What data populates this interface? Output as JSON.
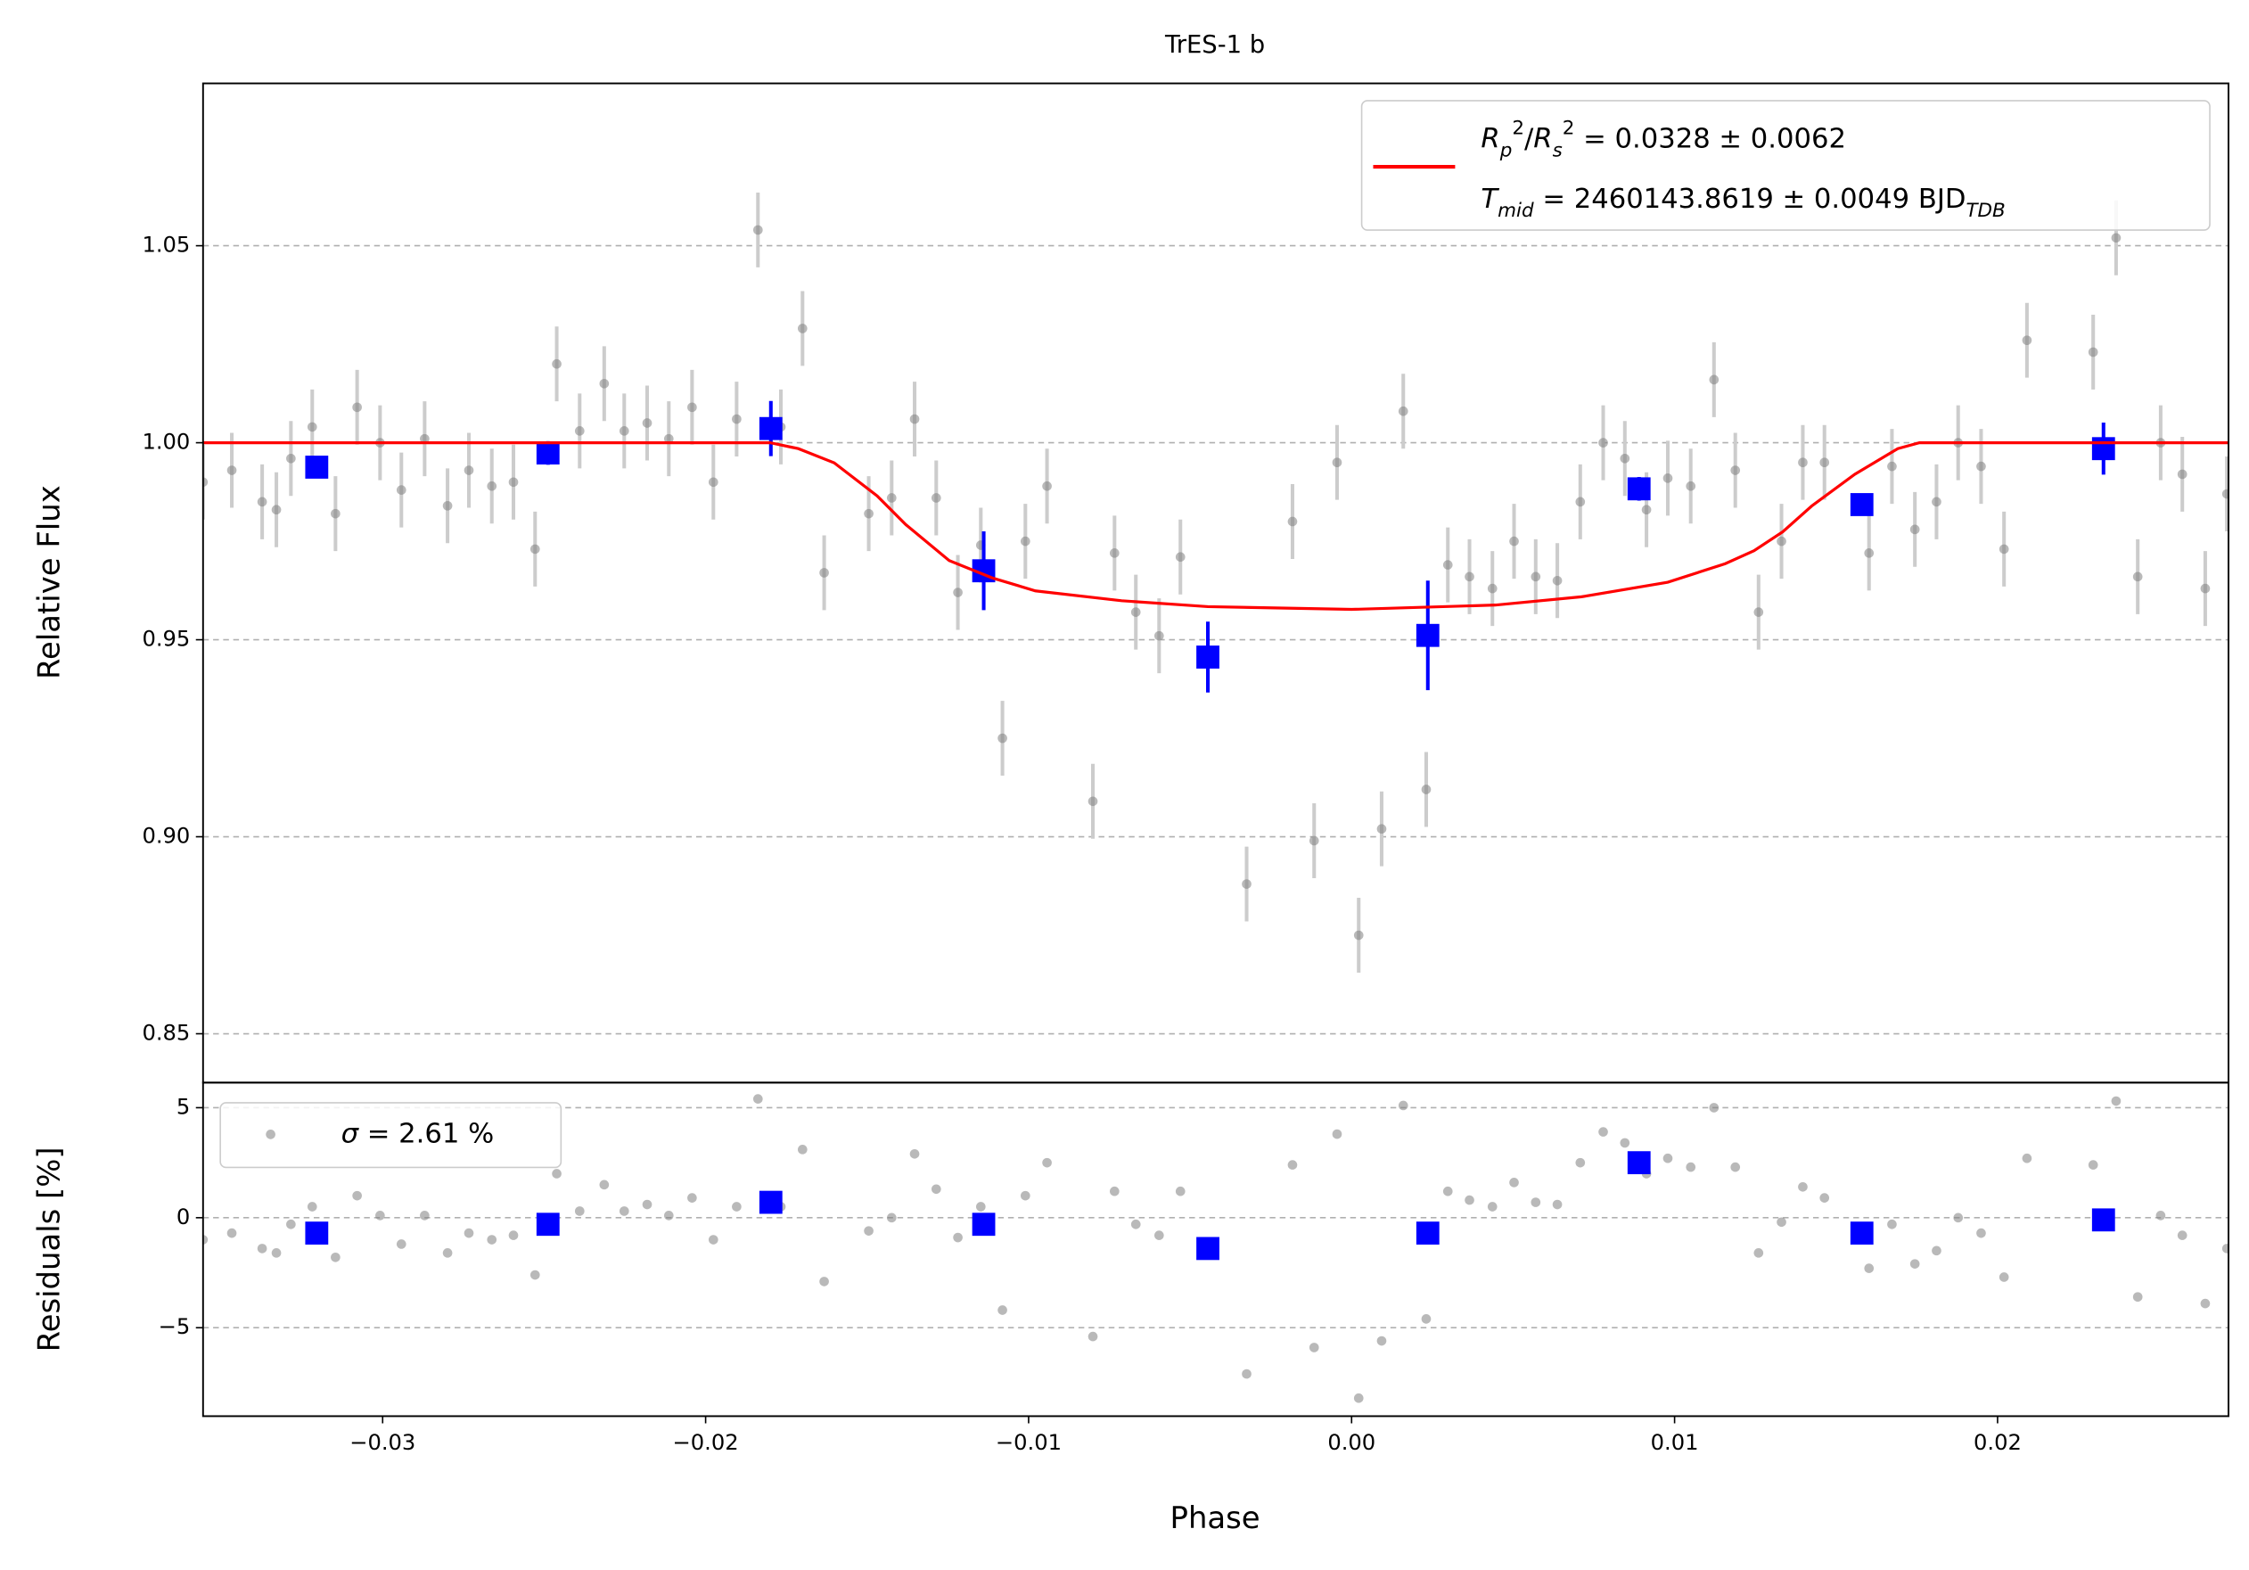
{
  "chart_data": [
    {
      "type": "scatter",
      "title": "TrES-1 b",
      "ylabel": "Relative Flux",
      "xlim": [
        -0.03556,
        0.02715
      ],
      "ylim": [
        0.8376,
        1.0912
      ],
      "yticks": [
        0.85,
        {
          "value": 0.9,
          "label": "0.90"
        },
        0.95,
        {
          "value": 1.0,
          "label": "1.00"
        },
        1.05
      ],
      "grid": true,
      "legend": {
        "loc": "upper right",
        "lines": [
          [
            {
              "t": "R",
              "s": "i"
            },
            {
              "t": "p",
              "s": "sub"
            },
            {
              "t": "2",
              "s": "sup"
            },
            {
              "t": "/",
              "s": "n"
            },
            {
              "t": "R",
              "s": "i"
            },
            {
              "t": "s",
              "s": "sub"
            },
            {
              "t": "2",
              "s": "sup"
            },
            {
              "t": " = 0.0328 ± 0.0062",
              "s": "n"
            }
          ],
          [
            {
              "t": "T",
              "s": "i"
            },
            {
              "t": "mid",
              "s": "sub"
            },
            {
              "t": " = 2460143.8619 ± 0.0049 BJD",
              "s": "n"
            },
            {
              "t": "TDB",
              "s": "sub"
            }
          ]
        ],
        "series": 2
      },
      "series": [
        {
          "marker": "circle",
          "color": "#808080",
          "errcolor": "#cccccc",
          "yerr": 0.0095,
          "x": [
            -0.03556,
            -0.03467,
            -0.03373,
            -0.03329,
            -0.03284,
            -0.03218,
            -0.03146,
            -0.03079,
            -0.03008,
            -0.02942,
            -0.0287,
            -0.02799,
            -0.02733,
            -0.02662,
            -0.02595,
            -0.02528,
            -0.02461,
            -0.0239,
            -0.02314,
            -0.02252,
            -0.02181,
            -0.02114,
            -0.02042,
            -0.01976,
            -0.01904,
            -0.01838,
            -0.01767,
            -0.017,
            -0.01633,
            -0.01495,
            -0.01424,
            -0.01353,
            -0.01286,
            -0.01219,
            -0.01148,
            -0.01081,
            -0.0101,
            -0.00943,
            -0.00801,
            -0.00734,
            -0.00668,
            -0.00596,
            -0.0053,
            -0.00325,
            -0.00183,
            -0.00116,
            -0.00045,
            0.00022,
            0.00093,
            0.0016,
            0.00231,
            0.00298,
            0.00365,
            0.00436,
            0.00503,
            0.0057,
            0.00637,
            0.00708,
            0.00779,
            0.00846,
            0.00913,
            0.00979,
            0.0105,
            0.01122,
            0.01188,
            0.0126,
            0.01331,
            0.01397,
            0.01464,
            0.01602,
            0.01673,
            0.01744,
            0.01811,
            0.01878,
            0.01949,
            0.0202,
            0.02091,
            0.02296,
            0.02367,
            0.02434,
            0.02505,
            0.02572,
            0.02643,
            0.0271
          ],
          "values": [
            0.99,
            0.993,
            0.985,
            0.983,
            0.996,
            1.004,
            0.982,
            1.009,
            1.0,
            0.988,
            1.001,
            0.984,
            0.993,
            0.989,
            0.99,
            0.973,
            1.02,
            1.003,
            1.015,
            1.003,
            1.005,
            1.001,
            1.009,
            0.99,
            1.006,
            1.054,
            1.004,
            1.029,
            0.967,
            0.982,
            0.986,
            1.006,
            0.986,
            0.962,
            0.974,
            0.925,
            0.975,
            0.989,
            0.909,
            0.972,
            0.957,
            0.951,
            0.971,
            0.888,
            0.98,
            0.899,
            0.995,
            0.875,
            0.902,
            1.008,
            0.912,
            0.969,
            0.966,
            0.963,
            0.975,
            0.966,
            0.965,
            0.985,
            1.0,
            0.996,
            0.983,
            0.991,
            0.989,
            1.016,
            0.993,
            0.957,
            0.975,
            0.995,
            0.995,
            0.972,
            0.994,
            0.978,
            0.985,
            1.0,
            0.994,
            0.973,
            1.026,
            1.023,
            1.052,
            0.966,
            1.0,
            0.992,
            0.963,
            0.987
          ]
        },
        {
          "marker": "square",
          "color": "#0000ff",
          "errcolor": "#0000ff",
          "x": [
            -0.03204,
            -0.02488,
            -0.01798,
            -0.01139,
            -0.00445,
            0.00236,
            0.0089,
            0.0158,
            0.02328
          ],
          "values": [
            0.9938,
            0.9974,
            1.0036,
            0.9675,
            0.9456,
            0.9511,
            0.9883,
            0.9843,
            0.9985
          ],
          "yerr": [
            0.0015,
            0.003,
            0.007,
            0.01,
            0.009,
            0.0139,
            0.003,
            0.002,
            0.0066
          ]
        },
        {
          "marker": "line",
          "color": "#ff0000",
          "x": [
            -0.03556,
            -0.018,
            -0.01713,
            -0.01602,
            -0.01469,
            -0.0138,
            -0.01246,
            -0.01113,
            -0.00979,
            -0.00712,
            -0.00445,
            0,
            0.00445,
            0.00712,
            0.00979,
            0.01157,
            0.01246,
            0.01335,
            0.01424,
            0.01558,
            0.01691,
            0.01758,
            0.02715
          ],
          "values": [
            1.0,
            1.0,
            0.9985,
            0.9949,
            0.9865,
            0.9792,
            0.9701,
            0.9657,
            0.9624,
            0.9599,
            0.9584,
            0.9577,
            0.9588,
            0.9609,
            0.9646,
            0.9693,
            0.9726,
            0.9774,
            0.9839,
            0.992,
            0.9985,
            1.0,
            1.0
          ]
        }
      ]
    },
    {
      "type": "scatter",
      "ylabel": "Residuals [%]",
      "xlabel": "Phase",
      "xlim": [
        -0.03556,
        0.02715
      ],
      "ylim": [
        -9.02,
        6.14
      ],
      "xticks": [
        {
          "value": -0.03,
          "label": "−0.03"
        },
        {
          "value": -0.02,
          "label": "−0.02"
        },
        {
          "value": -0.01,
          "label": "−0.01"
        },
        {
          "value": 0,
          "label": "0.00"
        },
        0.01,
        0.02
      ],
      "yticks": [
        {
          "value": -5,
          "label": "−5"
        },
        0,
        5
      ],
      "grid": true,
      "legend": {
        "loc": "upper left",
        "lines": [
          [
            {
              "t": "σ",
              "s": "i"
            },
            {
              "t": " = 2.61 %",
              "s": "n"
            }
          ]
        ],
        "series": 0
      },
      "series": [
        {
          "marker": "circle",
          "color": "#808080",
          "x": [
            -0.03556,
            -0.03467,
            -0.03373,
            -0.03329,
            -0.03284,
            -0.03218,
            -0.03146,
            -0.03079,
            -0.03008,
            -0.02942,
            -0.0287,
            -0.02799,
            -0.02733,
            -0.02662,
            -0.02595,
            -0.02528,
            -0.02461,
            -0.0239,
            -0.02314,
            -0.02252,
            -0.02181,
            -0.02114,
            -0.02042,
            -0.01976,
            -0.01904,
            -0.01838,
            -0.01767,
            -0.017,
            -0.01633,
            -0.01495,
            -0.01424,
            -0.01353,
            -0.01286,
            -0.01219,
            -0.01148,
            -0.01081,
            -0.0101,
            -0.00943,
            -0.00801,
            -0.00734,
            -0.00668,
            -0.00596,
            -0.0053,
            -0.00325,
            -0.00183,
            -0.00116,
            -0.00045,
            0.00022,
            0.00093,
            0.0016,
            0.00231,
            0.00298,
            0.00365,
            0.00436,
            0.00503,
            0.0057,
            0.00637,
            0.00708,
            0.00779,
            0.00846,
            0.00913,
            0.00979,
            0.0105,
            0.01122,
            0.01188,
            0.0126,
            0.01331,
            0.01397,
            0.01464,
            0.01602,
            0.01673,
            0.01744,
            0.01811,
            0.01878,
            0.01949,
            0.0202,
            0.02091,
            0.02296,
            0.02367,
            0.02434,
            0.02505,
            0.02572,
            0.02643,
            0.0271
          ],
          "values": [
            -1.0,
            -0.7,
            -1.4,
            -1.6,
            -0.3,
            0.5,
            -1.8,
            1.0,
            0.1,
            -1.2,
            0.1,
            -1.6,
            -0.7,
            -1.0,
            -0.8,
            -2.6,
            2.0,
            0.3,
            1.5,
            0.3,
            0.6,
            0.1,
            0.9,
            -1.0,
            0.5,
            5.4,
            0.5,
            3.1,
            -2.9,
            -0.6,
            0.0,
            2.9,
            1.3,
            -0.9,
            0.5,
            -4.2,
            1.0,
            2.5,
            -5.4,
            1.2,
            -0.3,
            -0.8,
            1.2,
            -7.1,
            2.4,
            -5.9,
            3.8,
            -8.2,
            -5.6,
            5.1,
            -4.6,
            1.2,
            0.8,
            0.5,
            1.6,
            0.7,
            0.6,
            2.5,
            3.9,
            3.4,
            2.0,
            2.7,
            2.3,
            5.0,
            2.3,
            -1.6,
            -0.2,
            1.4,
            0.9,
            -2.3,
            -0.3,
            -2.1,
            -1.5,
            0.0,
            -0.7,
            -2.7,
            2.7,
            2.4,
            5.3,
            -3.6,
            0.1,
            -0.8,
            -3.9,
            -1.4
          ]
        },
        {
          "marker": "square",
          "color": "#0000ff",
          "x": [
            -0.03204,
            -0.02488,
            -0.01798,
            -0.01139,
            -0.00445,
            0.00236,
            0.0089,
            0.0158,
            0.02328
          ],
          "values": [
            -0.7,
            -0.3,
            0.7,
            -0.3,
            -1.4,
            -0.7,
            2.5,
            -0.7,
            -0.1
          ]
        }
      ]
    }
  ]
}
